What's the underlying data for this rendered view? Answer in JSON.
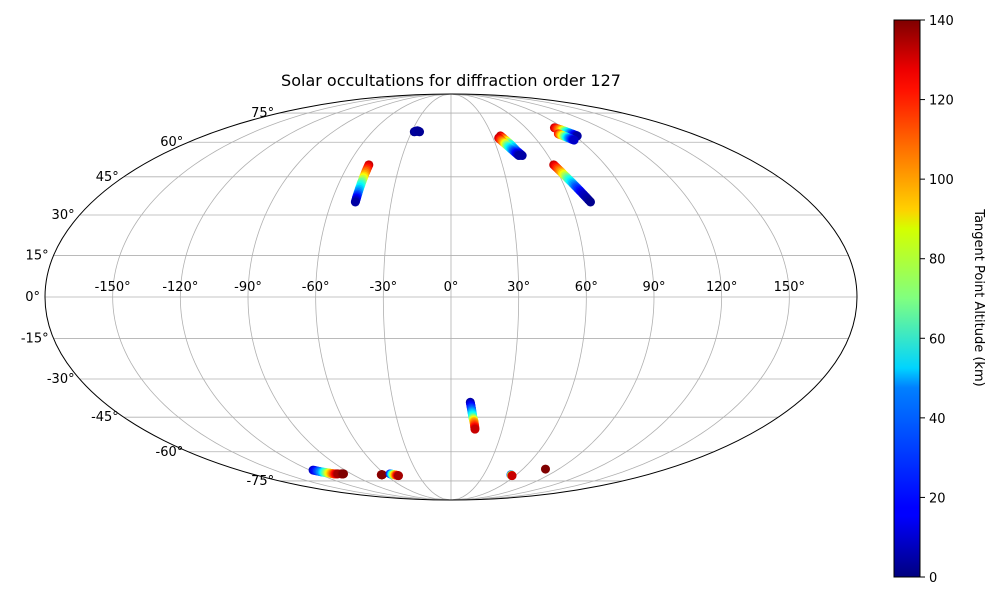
{
  "chart_data": {
    "type": "scatter",
    "projection": "mollweide",
    "title": "Solar occultations for diffraction order 127",
    "x_tick_labels": [
      "-150°",
      "-120°",
      "-90°",
      "-60°",
      "-30°",
      "0°",
      "30°",
      "60°",
      "90°",
      "120°",
      "150°"
    ],
    "y_tick_labels": [
      "75°",
      "60°",
      "45°",
      "30°",
      "15°",
      "0°",
      "-15°",
      "-30°",
      "-45°",
      "-60°",
      "-75°"
    ],
    "grid": true,
    "colorbar": {
      "label": "Tangent Point Altitude (km)",
      "colormap": "jet",
      "range": [
        0,
        140
      ],
      "ticks": [
        "0",
        "20",
        "40",
        "60",
        "80",
        "100",
        "120",
        "140"
      ]
    },
    "series": [
      {
        "lon": [
          -28,
          -26,
          -24
        ],
        "lat": [
          65,
          65.5,
          65
        ],
        "alt": [
          2,
          5,
          3
        ]
      },
      {
        "lon": [
          -48,
          -48,
          -48,
          -48,
          -48
        ],
        "lat": [
          50,
          46,
          42,
          38,
          35
        ],
        "alt": [
          130,
          100,
          60,
          30,
          5
        ]
      },
      {
        "lon": [
          36,
          38,
          40,
          42,
          44
        ],
        "lat": [
          63,
          61,
          59,
          56,
          54
        ],
        "alt": [
          130,
          100,
          60,
          30,
          5
        ]
      },
      {
        "lon": [
          34,
          36,
          38,
          40,
          42
        ],
        "lat": [
          62,
          60,
          58,
          56,
          54
        ],
        "alt": [
          130,
          100,
          60,
          30,
          5
        ]
      },
      {
        "lon": [
          60,
          62,
          64,
          66,
          68,
          70
        ],
        "lat": [
          50,
          47,
          44,
          41,
          38,
          35
        ],
        "alt": [
          130,
          100,
          60,
          30,
          10,
          2
        ]
      },
      {
        "lon": [
          83,
          86,
          88,
          90,
          92
        ],
        "lat": [
          67,
          66,
          65,
          64,
          63
        ],
        "alt": [
          130,
          100,
          60,
          30,
          5
        ]
      },
      {
        "lon": [
          80,
          82,
          84,
          86
        ],
        "lat": [
          64,
          63,
          62,
          61
        ],
        "alt": [
          120,
          80,
          40,
          10
        ]
      },
      {
        "lon": [
          10,
          11,
          12,
          13,
          14
        ],
        "lat": [
          -39,
          -42,
          -45,
          -47,
          -50
        ],
        "alt": [
          5,
          30,
          60,
          100,
          130
        ]
      },
      {
        "lon": [
          -117,
          -113,
          -109,
          -106,
          -102
        ],
        "lat": [
          -69,
          -70,
          -70.5,
          -71,
          -71
        ],
        "alt": [
          10,
          40,
          80,
          110,
          135
        ]
      },
      {
        "lon": [
          -99,
          -97
        ],
        "lat": [
          -71,
          -71
        ],
        "alt": [
          135,
          140
        ]
      },
      {
        "lon": [
          -64,
          -63
        ],
        "lat": [
          -71.5,
          -71.5
        ],
        "alt": [
          135,
          140
        ]
      },
      {
        "lon": [
          -55,
          -52,
          -49
        ],
        "lat": [
          -71,
          -71.5,
          -72
        ],
        "alt": [
          20,
          90,
          135
        ]
      },
      {
        "lon": [
          55,
          57
        ],
        "lat": [
          -71.5,
          -72
        ],
        "alt": [
          20,
          130
        ]
      },
      {
        "lon": [
          79
        ],
        "lat": [
          -68.5
        ],
        "alt": [
          140
        ]
      }
    ]
  }
}
